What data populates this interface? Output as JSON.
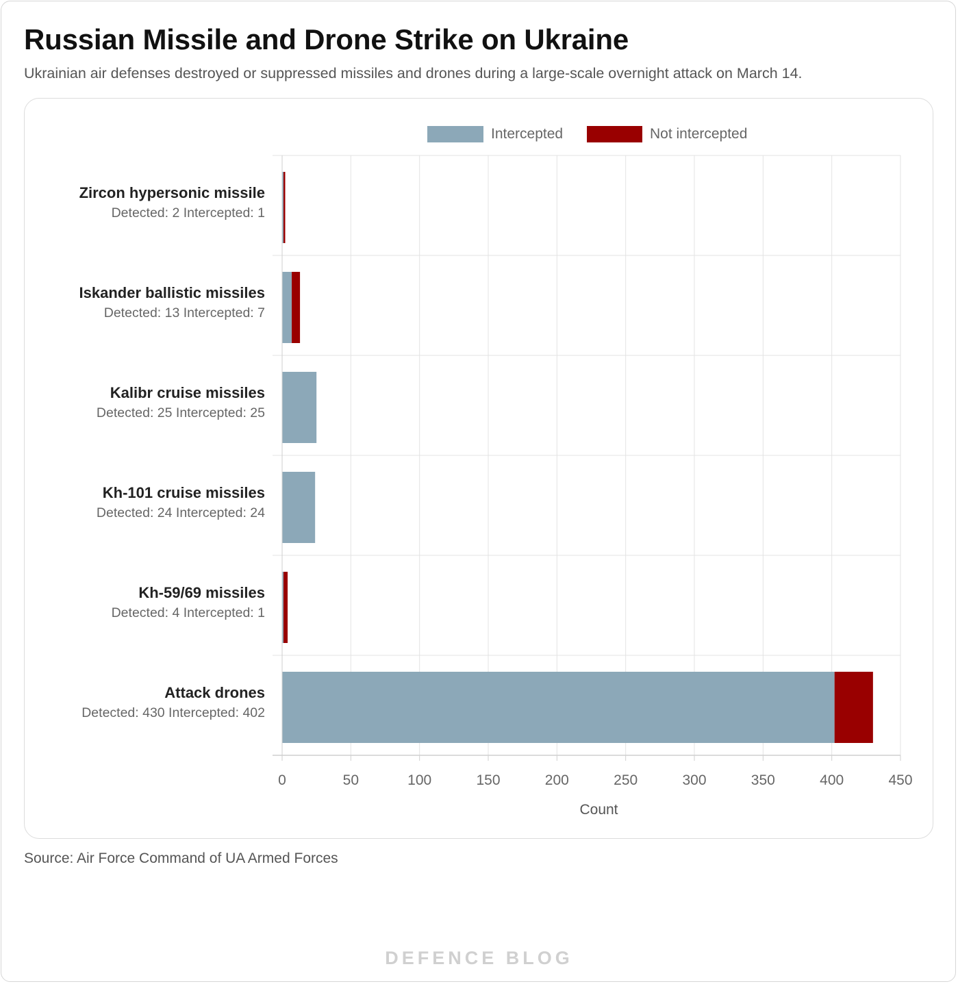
{
  "header": {
    "title": "Russian Missile and Drone Strike on Ukraine",
    "subtitle": "Ukrainian air defenses destroyed or suppressed missiles and drones during a large-scale overnight attack on March 14."
  },
  "footer": {
    "source": "Source: Air Force Command of UA Armed Forces",
    "brand": "DEFENCE BLOG"
  },
  "chart_data": {
    "type": "bar",
    "orientation": "horizontal",
    "stacked": true,
    "categories": [
      "Zircon hypersonic missile",
      "Iskander ballistic missiles",
      "Kalibr cruise missiles",
      "Kh-101 cruise missiles",
      "Kh-59/69 missiles",
      "Attack drones"
    ],
    "category_details": [
      "Detected: 2  Intercepted: 1",
      "Detected: 13  Intercepted: 7",
      "Detected: 25  Intercepted: 25",
      "Detected: 24  Intercepted: 24",
      "Detected: 4  Intercepted: 1",
      "Detected: 430  Intercepted: 402"
    ],
    "series": [
      {
        "name": "Intercepted",
        "color": "#8ca8b8",
        "values": [
          1,
          7,
          25,
          24,
          1,
          402
        ]
      },
      {
        "name": "Not intercepted",
        "color": "#990000",
        "values": [
          1,
          6,
          0,
          0,
          3,
          28
        ]
      }
    ],
    "xlabel": "Count",
    "xlim": [
      0,
      450
    ],
    "xticks": [
      0,
      50,
      100,
      150,
      200,
      250,
      300,
      350,
      400,
      450
    ],
    "grid": true,
    "legend_position": "top-center"
  }
}
